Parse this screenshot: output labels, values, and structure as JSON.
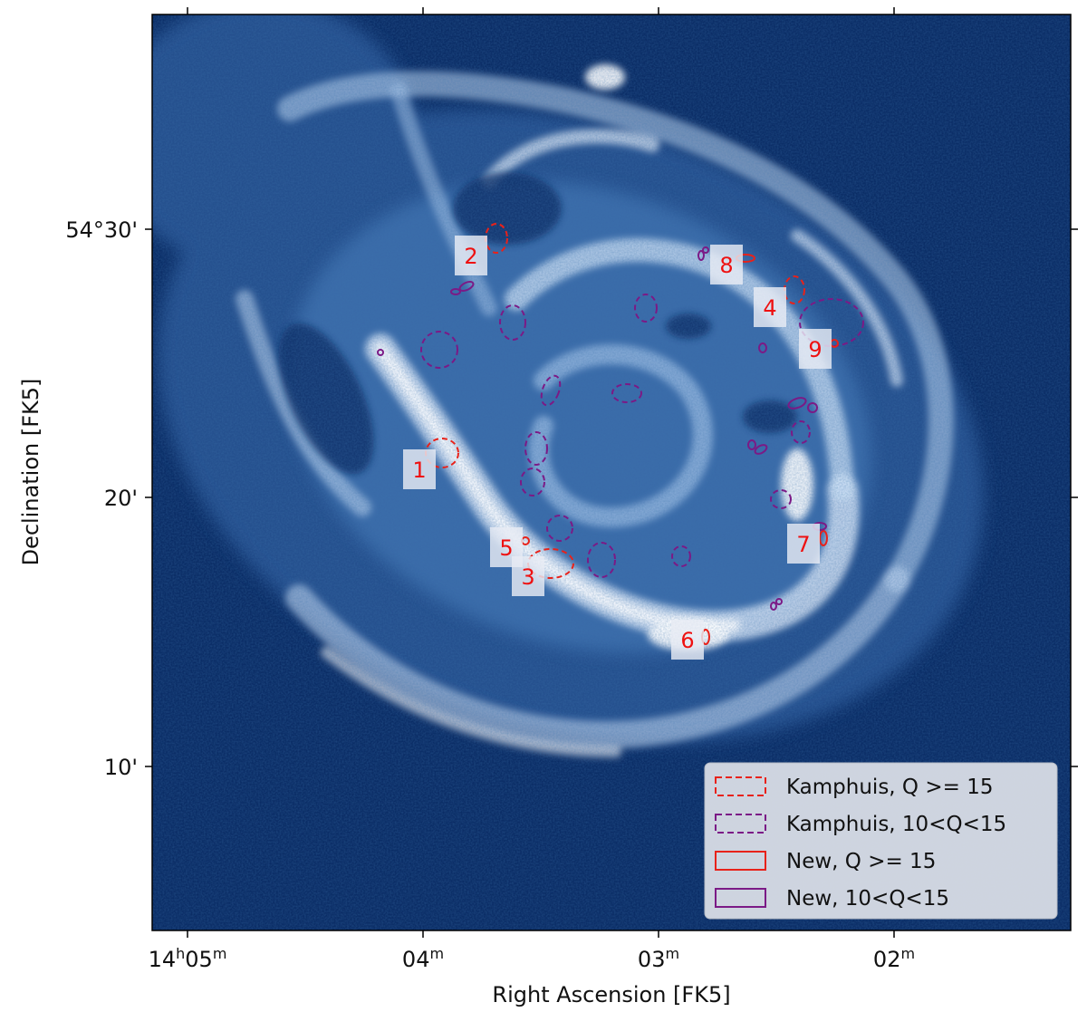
{
  "axes": {
    "xlabel": "Right Ascension [FK5]",
    "ylabel": "Declination [FK5]",
    "xticks": [
      {
        "main": "14",
        "sup1": "h",
        "mid": "05",
        "sup2": "m"
      },
      {
        "main": "04",
        "sup1": "m",
        "mid": "",
        "sup2": ""
      },
      {
        "main": "03",
        "sup1": "m",
        "mid": "",
        "sup2": ""
      },
      {
        "main": "02",
        "sup1": "m",
        "mid": "",
        "sup2": ""
      }
    ],
    "yticks": [
      "54°30'",
      "20'",
      "10'"
    ]
  },
  "image": {
    "background_color": "#0b2d66",
    "emission_color": "#ffffff",
    "description_kind": "galaxy-emission-map"
  },
  "sources": [
    {
      "label": "1"
    },
    {
      "label": "2"
    },
    {
      "label": "3"
    },
    {
      "label": "4"
    },
    {
      "label": "5"
    },
    {
      "label": "6"
    },
    {
      "label": "7"
    },
    {
      "label": "8"
    },
    {
      "label": "9"
    }
  ],
  "legend": {
    "entries": [
      {
        "label": "Kamphuis, Q >= 15",
        "color": "#e8221a",
        "style": "dashed"
      },
      {
        "label": "Kamphuis, 10<Q<15",
        "color": "#7b1a86",
        "style": "dashed"
      },
      {
        "label": "New, Q >= 15",
        "color": "#e8221a",
        "style": "solid"
      },
      {
        "label": "New, 10<Q<15",
        "color": "#7b1a86",
        "style": "solid"
      }
    ]
  },
  "colors": {
    "red": "#e8221a",
    "purple": "#7b1a86",
    "label_red": "#ee1111"
  }
}
